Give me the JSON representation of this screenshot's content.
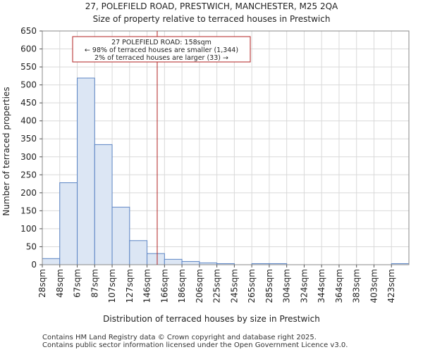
{
  "chart_data": {
    "type": "bar",
    "title": "27, POLEFIELD ROAD, PRESTWICH, MANCHESTER, M25 2QA",
    "subtitle": "Size of property relative to terraced houses in Prestwich",
    "xlabel": "Distribution of terraced houses by size in Prestwich",
    "ylabel": "Number of terraced properties",
    "ylim": [
      0,
      650
    ],
    "yticks": [
      0,
      50,
      100,
      150,
      200,
      250,
      300,
      350,
      400,
      450,
      500,
      550,
      600,
      650
    ],
    "categories": [
      "28sqm",
      "48sqm",
      "67sqm",
      "87sqm",
      "107sqm",
      "127sqm",
      "146sqm",
      "166sqm",
      "186sqm",
      "206sqm",
      "225sqm",
      "245sqm",
      "265sqm",
      "285sqm",
      "304sqm",
      "324sqm",
      "344sqm",
      "364sqm",
      "383sqm",
      "403sqm",
      "423sqm"
    ],
    "values": [
      17,
      228,
      519,
      334,
      160,
      67,
      31,
      15,
      9,
      5,
      3,
      0,
      3,
      3,
      0,
      0,
      0,
      0,
      0,
      0,
      3
    ],
    "bar_fill": "#dce6f4",
    "bar_stroke": "#5b84c4",
    "marker": {
      "value_sqm": 158,
      "color": "#b22222",
      "annotation": [
        "27 POLEFIELD ROAD: 158sqm",
        "← 98% of terraced houses are smaller (1,344)",
        "2% of terraced houses are larger (33) →"
      ]
    }
  },
  "footer": {
    "line1": "Contains HM Land Registry data © Crown copyright and database right 2025.",
    "line2": "Contains public sector information licensed under the Open Government Licence v3.0."
  }
}
